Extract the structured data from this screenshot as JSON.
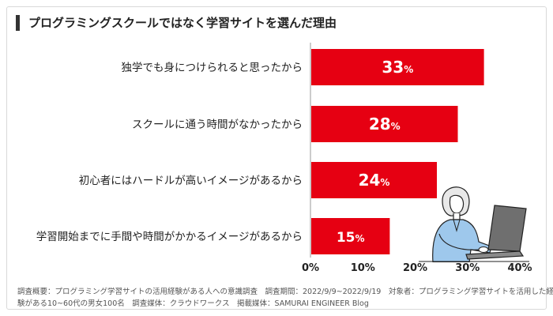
{
  "title": "プログラミングスクールではなく学習サイトを選んだ理由",
  "colors": {
    "bar": "#e60012",
    "text": "#222222",
    "axis": "#999999"
  },
  "chart_data": {
    "type": "bar",
    "orientation": "horizontal",
    "title": "プログラミングスクールではなく学習サイトを選んだ理由",
    "categories": [
      "独学でも身につけられると思ったから",
      "スクールに通う時間がなかったから",
      "初心者にはハードルが高いイメージがあるから",
      "学習開始までに手間や時間がかかるイメージがあるから"
    ],
    "values": [
      33,
      28,
      24,
      15
    ],
    "value_unit": "%",
    "xlim": [
      0,
      40
    ],
    "xticks": [
      0,
      10,
      20,
      30,
      40
    ],
    "tick_suffix": "%",
    "grid": false,
    "legend": "none"
  },
  "footer": {
    "line1": "調査概要：プログラミング学習サイトの活用経験がある人への意識調査　調査期間：2022/9/9~2022/9/19　対象者：プログラミング学習サイトを活用した経",
    "line2": "験がある10~60代の男女100名　調査媒体：クラウドワークス　掲載媒体：SAMURAI ENGINEER Blog"
  },
  "illustration": "person-using-laptop-illustration"
}
